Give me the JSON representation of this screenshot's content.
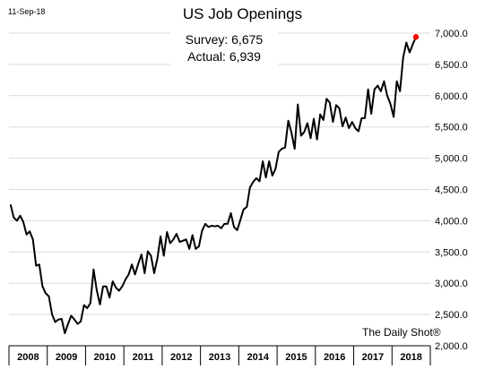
{
  "header": {
    "date": "11-Sep-18",
    "title": "US Job Openings"
  },
  "annotation": {
    "survey": "Survey: 6,675",
    "actual": "Actual:  6,939"
  },
  "source": "The Daily Shot®",
  "colors": {
    "line": "#000000",
    "marker": "#ff0000",
    "grid": "#d9d9d9"
  },
  "chart_data": {
    "type": "line",
    "title": "US Job Openings",
    "xlabel": "",
    "ylabel": "",
    "ylim": [
      2000,
      7000
    ],
    "yticks": [
      2000,
      2500,
      3000,
      3500,
      4000,
      4500,
      5000,
      5500,
      6000,
      6500,
      7000
    ],
    "ytick_labels": [
      "2,000.0",
      "2,500.0",
      "3,000.0",
      "3,500.0",
      "4,000.0",
      "4,500.0",
      "5,000.0",
      "5,500.0",
      "6,000.0",
      "6,500.0",
      "7,000.0"
    ],
    "xticks": [
      "2008",
      "2009",
      "2010",
      "2011",
      "2012",
      "2013",
      "2014",
      "2015",
      "2016",
      "2017",
      "2018"
    ],
    "x_start": "2008-01",
    "grid": "horizontal",
    "series": [
      {
        "values": [
          4260,
          4050,
          4000,
          4080,
          3980,
          3780,
          3830,
          3700,
          3280,
          3300,
          2950,
          2840,
          2790,
          2500,
          2380,
          2420,
          2430,
          2200,
          2350,
          2480,
          2420,
          2350,
          2390,
          2650,
          2600,
          2680,
          3220,
          2890,
          2660,
          2950,
          2950,
          2770,
          3030,
          2930,
          2880,
          2950,
          3060,
          3140,
          3300,
          3140,
          3310,
          3460,
          3160,
          3510,
          3440,
          3160,
          3400,
          3750,
          3440,
          3820,
          3640,
          3700,
          3790,
          3660,
          3680,
          3700,
          3550,
          3770,
          3550,
          3590,
          3840,
          3950,
          3900,
          3920,
          3910,
          3920,
          3880,
          3950,
          3950,
          4120,
          3900,
          3850,
          4010,
          4180,
          4220,
          4530,
          4620,
          4680,
          4630,
          4950,
          4690,
          4950,
          4720,
          4830,
          5100,
          5150,
          5170,
          5600,
          5410,
          5150,
          5860,
          5360,
          5420,
          5560,
          5320,
          5630,
          5300,
          5700,
          5610,
          5950,
          5890,
          5580,
          5850,
          5800,
          5510,
          5650,
          5480,
          5580,
          5480,
          5430,
          5640,
          5640,
          6100,
          5710,
          6100,
          6160,
          6070,
          6230,
          6000,
          5870,
          5660,
          6230,
          6070,
          6610,
          6850,
          6690,
          6820,
          6939
        ]
      }
    ],
    "markers": [
      {
        "x": "2018-07",
        "y": 6939,
        "color": "#ff0000"
      }
    ]
  }
}
